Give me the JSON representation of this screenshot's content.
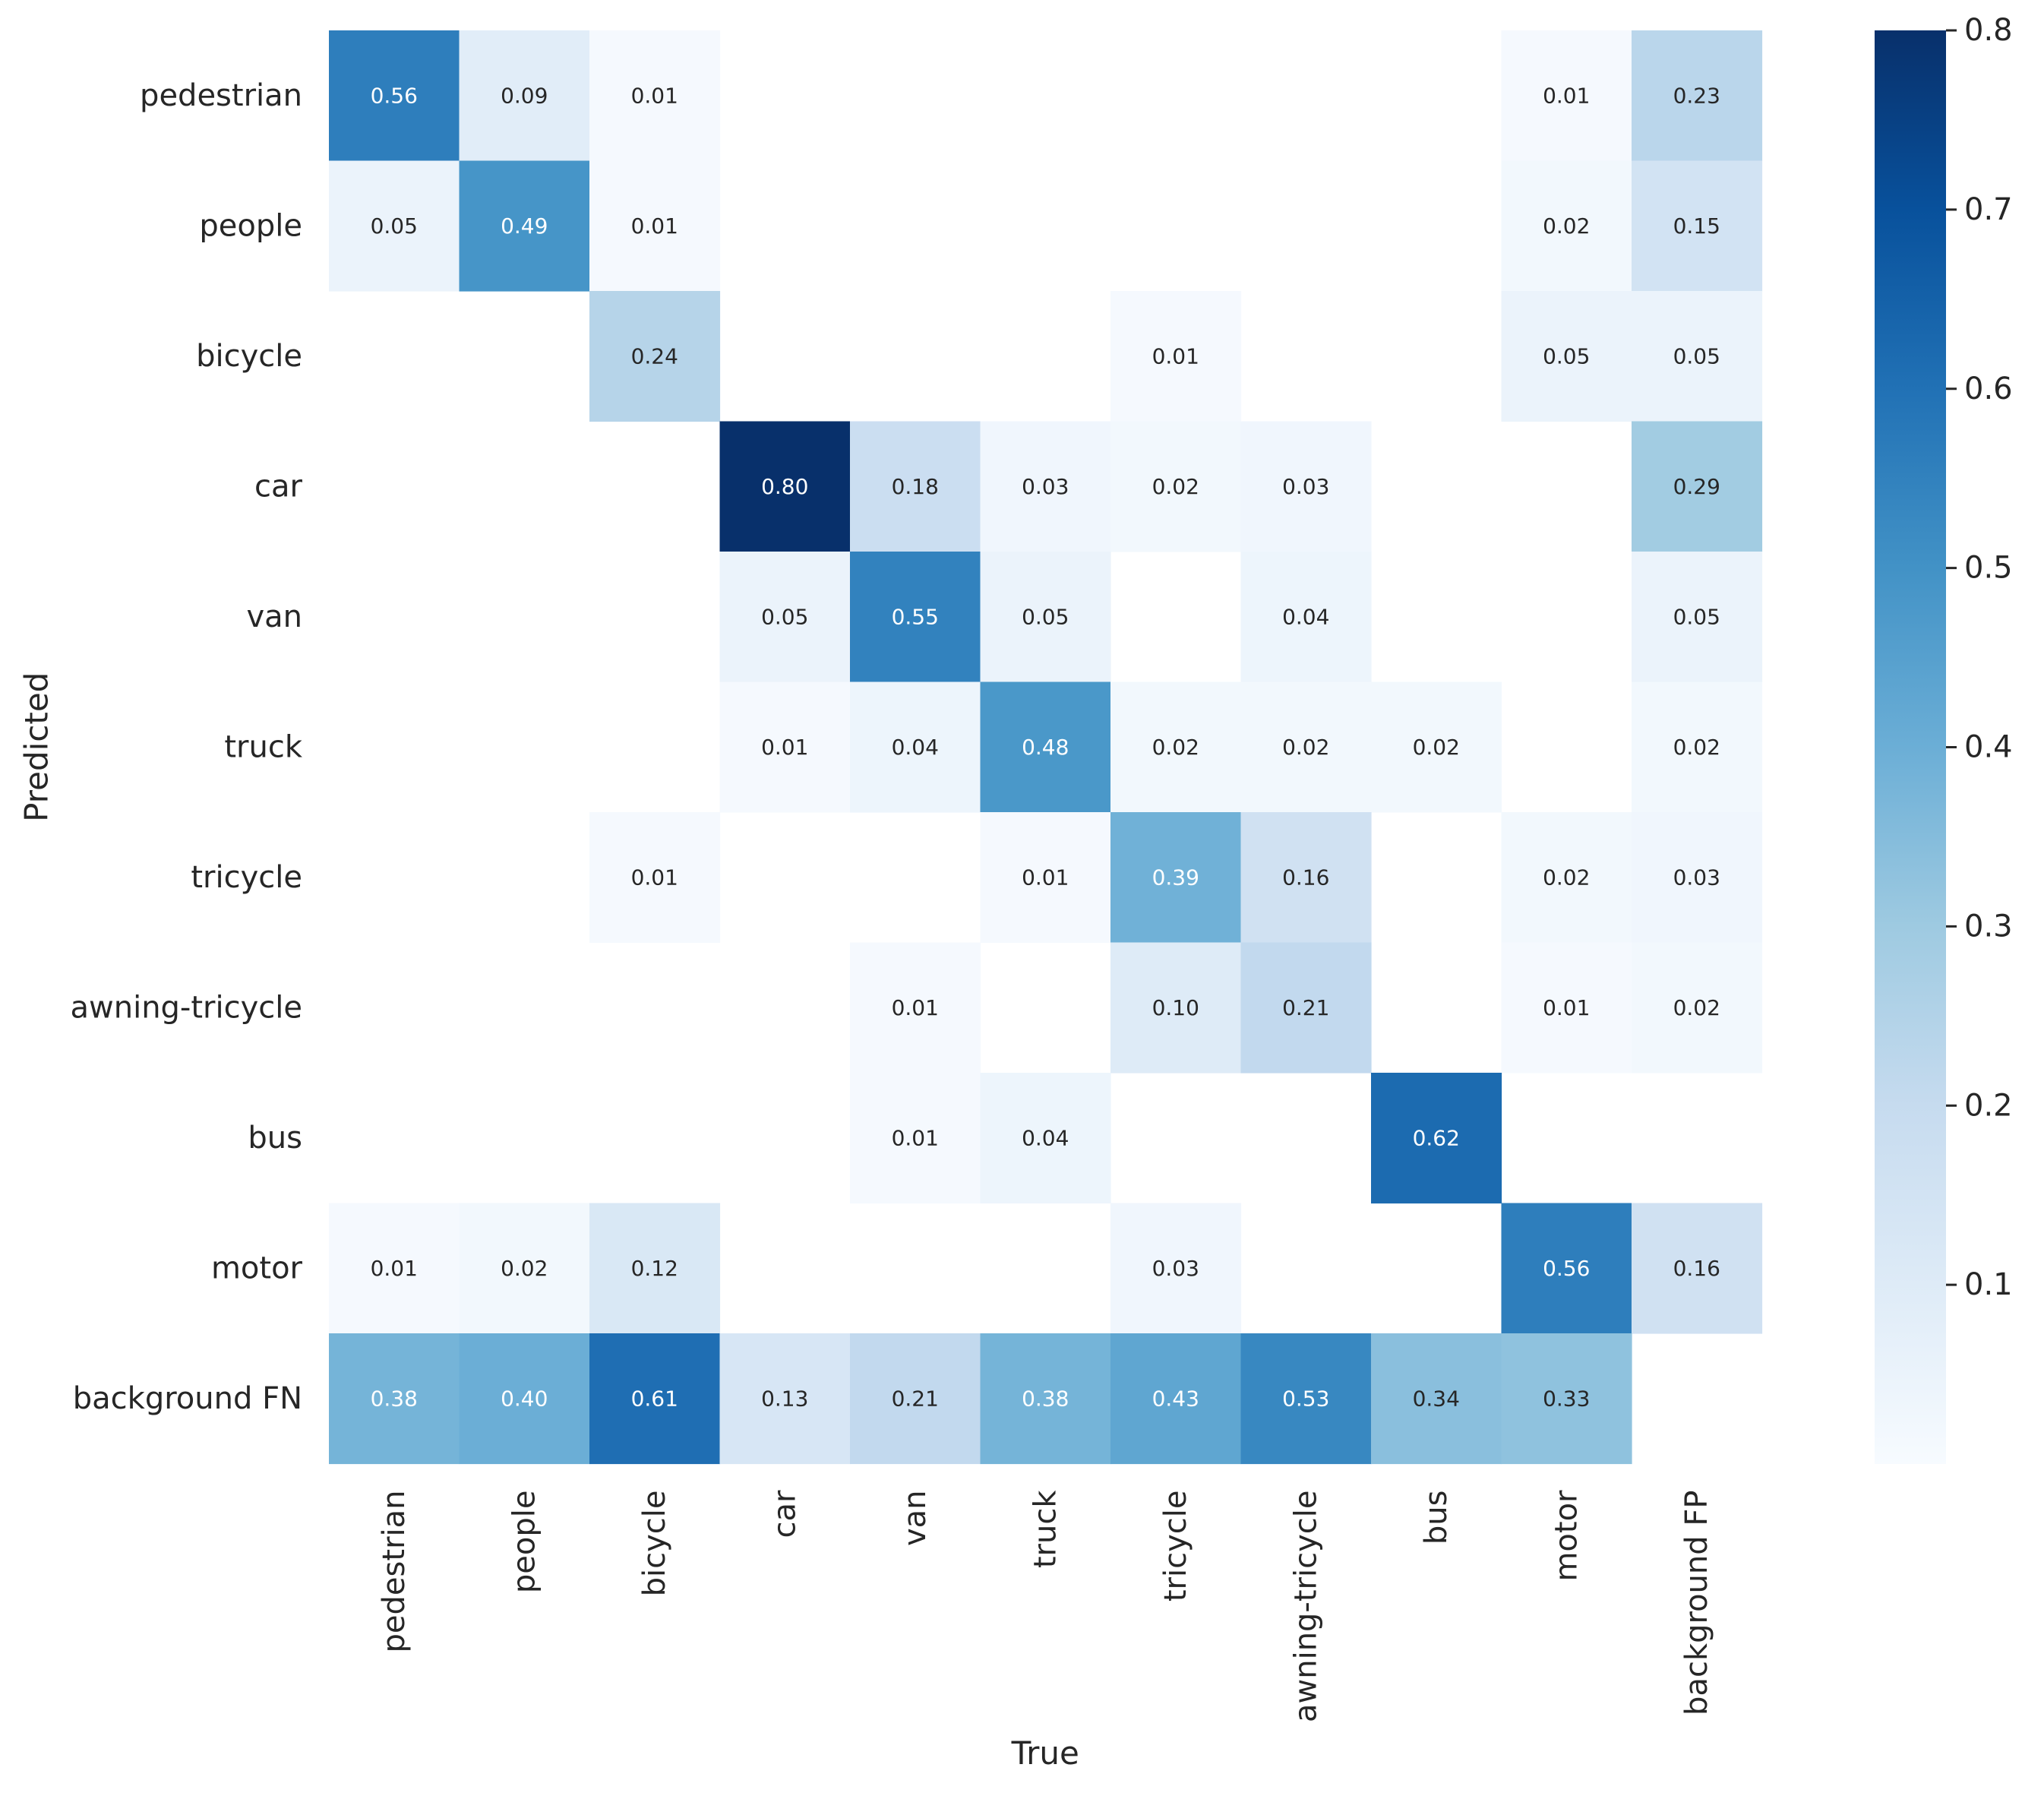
{
  "chart_data": {
    "type": "heatmap",
    "title": "",
    "xlabel": "True",
    "ylabel": "Predicted",
    "rows": [
      "pedestrian",
      "people",
      "bicycle",
      "car",
      "van",
      "truck",
      "tricycle",
      "awning-tricycle",
      "bus",
      "motor",
      "background FN"
    ],
    "columns": [
      "pedestrian",
      "people",
      "bicycle",
      "car",
      "van",
      "truck",
      "tricycle",
      "awning-tricycle",
      "bus",
      "motor",
      "background FP"
    ],
    "values": [
      [
        0.56,
        0.09,
        0.01,
        null,
        null,
        null,
        null,
        null,
        null,
        0.01,
        0.23
      ],
      [
        0.05,
        0.49,
        0.01,
        null,
        null,
        null,
        null,
        null,
        null,
        0.02,
        0.15
      ],
      [
        null,
        null,
        0.24,
        null,
        null,
        null,
        0.01,
        null,
        null,
        0.05,
        0.05
      ],
      [
        null,
        null,
        null,
        0.8,
        0.18,
        0.03,
        0.02,
        0.03,
        null,
        null,
        0.29
      ],
      [
        null,
        null,
        null,
        0.05,
        0.55,
        0.05,
        null,
        0.04,
        null,
        null,
        0.05
      ],
      [
        null,
        null,
        null,
        0.01,
        0.04,
        0.48,
        0.02,
        0.02,
        0.02,
        null,
        0.02
      ],
      [
        null,
        null,
        0.01,
        null,
        null,
        0.01,
        0.39,
        0.16,
        null,
        0.02,
        0.03
      ],
      [
        null,
        null,
        null,
        null,
        0.01,
        null,
        0.1,
        0.21,
        null,
        0.01,
        0.02
      ],
      [
        null,
        null,
        null,
        null,
        0.01,
        0.04,
        null,
        null,
        0.62,
        null,
        null
      ],
      [
        0.01,
        0.02,
        0.12,
        null,
        null,
        null,
        0.03,
        null,
        null,
        0.56,
        0.16
      ],
      [
        0.38,
        0.4,
        0.61,
        0.13,
        0.21,
        0.38,
        0.43,
        0.53,
        0.34,
        0.33,
        null
      ]
    ],
    "value_format": "2 decimals",
    "colorscale": "Blues",
    "colorbar": {
      "range": [
        0.0,
        0.8
      ],
      "ticks": [
        0.1,
        0.2,
        0.3,
        0.4,
        0.5,
        0.6,
        0.7,
        0.8
      ]
    },
    "colors": {
      "scale": [
        "#f7fbff",
        "#deebf7",
        "#c6dbef",
        "#9ecae1",
        "#6baed6",
        "#4292c6",
        "#2171b5",
        "#08519c",
        "#08306b"
      ],
      "text_dark": "#262626",
      "text_light": "#ffffff"
    }
  }
}
